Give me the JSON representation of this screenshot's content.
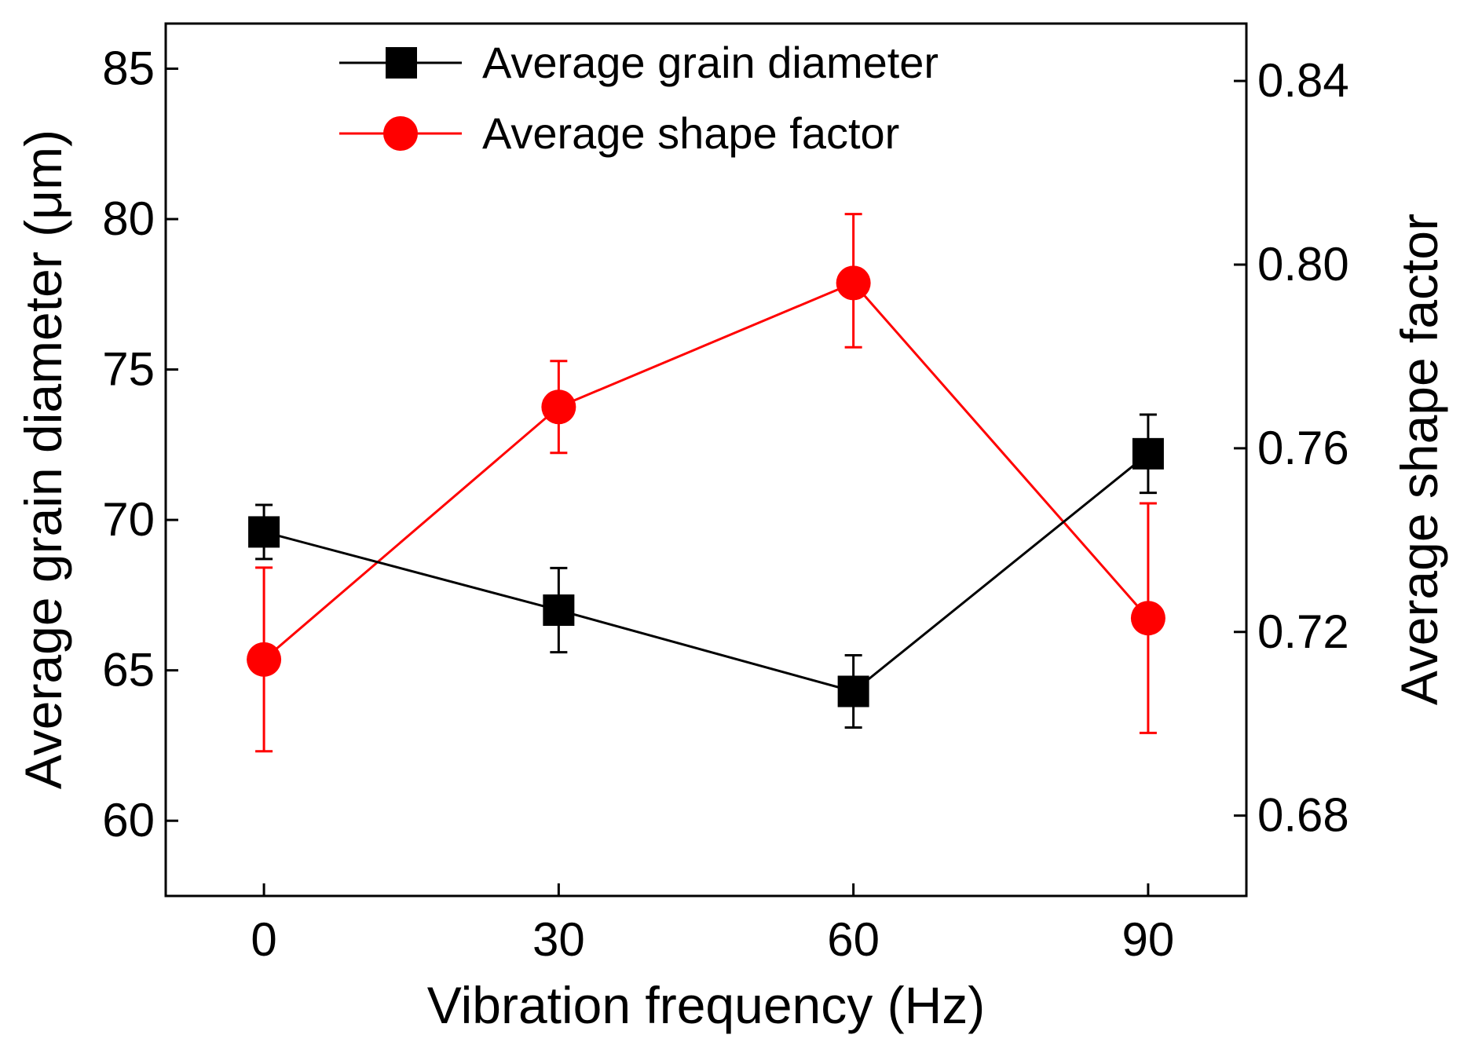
{
  "chart_data": {
    "type": "line",
    "title": "",
    "xlabel": "Vibration frequency (Hz)",
    "ylabel_left": "Average grain diameter (μm)",
    "ylabel_right": "Average shape factor",
    "x": [
      0,
      30,
      60,
      90
    ],
    "x_ticks": [
      "0",
      "30",
      "60",
      "90"
    ],
    "xlim": [
      -10,
      100
    ],
    "ylim_left": [
      57.5,
      86.5
    ],
    "ylim_right": [
      0.6625,
      0.8525
    ],
    "yticks_left": [
      60,
      65,
      70,
      75,
      80,
      85
    ],
    "yticks_left_labels": [
      "60",
      "65",
      "70",
      "75",
      "80",
      "85"
    ],
    "yticks_right": [
      0.68,
      0.72,
      0.76,
      0.8,
      0.84
    ],
    "yticks_right_labels": [
      "0.68",
      "0.72",
      "0.76",
      "0.80",
      "0.84"
    ],
    "grid": false,
    "legend_position": "top",
    "series": [
      {
        "name": "Average grain diameter",
        "axis": "left",
        "marker": "square",
        "color": "#000000",
        "values": [
          69.6,
          67.0,
          64.3,
          72.2
        ],
        "err_low": [
          68.7,
          65.6,
          63.1,
          70.9
        ],
        "err_high": [
          70.5,
          68.4,
          65.5,
          73.5
        ]
      },
      {
        "name": "Average shape factor",
        "axis": "right",
        "marker": "circle",
        "color": "#ff0000",
        "values": [
          0.714,
          0.769,
          0.796,
          0.723
        ],
        "err_low": [
          0.694,
          0.759,
          0.782,
          0.698
        ],
        "err_high": [
          0.734,
          0.779,
          0.811,
          0.748
        ]
      }
    ]
  }
}
